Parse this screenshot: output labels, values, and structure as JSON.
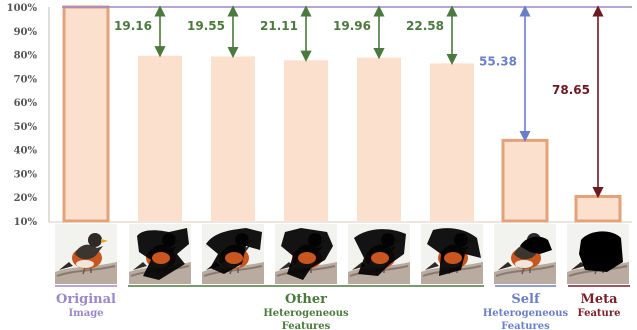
{
  "chart_data": {
    "type": "bar",
    "ylim": [
      10,
      100
    ],
    "yticks": [
      "10%",
      "20%",
      "30%",
      "40%",
      "50%",
      "60%",
      "70%",
      "80%",
      "90%",
      "100%"
    ],
    "values": [
      100,
      79.5,
      79.2,
      77.6,
      78.7,
      76.3,
      43.9,
      20.3
    ],
    "gap_labels": [
      "",
      "19.16",
      "19.55",
      "21.11",
      "19.96",
      "22.58",
      "55.38",
      "78.65"
    ],
    "groups": [
      {
        "lines": [
          "Original",
          "Image"
        ],
        "color": "#9b88c9"
      },
      {
        "lines": [
          "Other",
          "Heterogeneous",
          "Features"
        ],
        "color": "#4a7a3e"
      },
      {
        "lines": [
          "Self",
          "Heterogeneous",
          "Features"
        ],
        "color": "#6b7fc8"
      },
      {
        "lines": [
          "Meta",
          "Feature"
        ],
        "color": "#7a1f2b"
      }
    ],
    "colors": {
      "bar_fill": "#fbe0cd",
      "bar_edge": "#e3a27a",
      "top_line": "#9b88c9",
      "other_arrow": "#4a7a3e",
      "self_arrow": "#6b7fc8",
      "meta_arrow": "#6a1a22"
    },
    "images": [
      "robin-photo",
      "robin-photo-masked-1",
      "robin-photo-masked-2",
      "robin-photo-masked-3",
      "robin-photo-masked-4",
      "robin-photo-masked-5",
      "robin-photo-masked-self",
      "robin-photo-masked-meta"
    ]
  }
}
